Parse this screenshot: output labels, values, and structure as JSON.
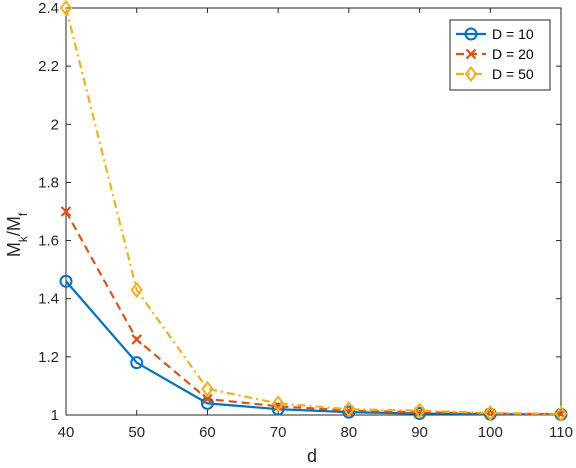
{
  "chart_data": {
    "type": "line",
    "xlabel": "d",
    "ylabel": {
      "base": "M",
      "sub1": "k",
      "mid": "/M",
      "sub2": "f"
    },
    "xlim": [
      40,
      110
    ],
    "ylim": [
      1,
      2.4
    ],
    "xticks": [
      40,
      50,
      60,
      70,
      80,
      90,
      100,
      110
    ],
    "yticks": [
      1,
      1.2,
      1.4,
      1.6,
      1.8,
      2,
      2.2,
      2.4
    ],
    "ytick_labels": [
      "1",
      "1.2",
      "1.4",
      "1.6",
      "1.8",
      "2",
      "2.2",
      "2.4"
    ],
    "x": [
      40,
      50,
      60,
      70,
      80,
      90,
      100,
      110
    ],
    "grid": false,
    "legend_position": "top-right",
    "series": [
      {
        "name": "D = 10",
        "color": "#0072BD",
        "dash": "solid",
        "marker": "circle",
        "values": [
          1.46,
          1.18,
          1.04,
          1.02,
          1.01,
          1.005,
          1.003,
          1.002
        ]
      },
      {
        "name": "D = 20",
        "color": "#D95319",
        "dash": "dashed",
        "marker": "x",
        "values": [
          1.7,
          1.26,
          1.055,
          1.03,
          1.015,
          1.01,
          1.005,
          1.003
        ]
      },
      {
        "name": "D = 50",
        "color": "#EDB120",
        "dash": "dashdot",
        "marker": "diamond",
        "values": [
          2.4,
          1.43,
          1.09,
          1.04,
          1.02,
          1.015,
          1.007,
          1.004
        ]
      }
    ]
  }
}
